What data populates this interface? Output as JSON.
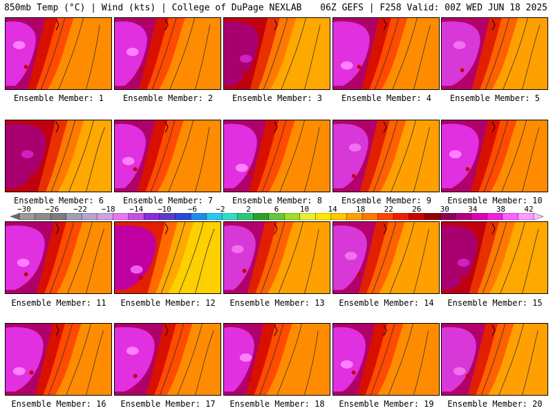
{
  "header": {
    "left": "850mb Temp (°C) | Wind (kts) | College of DuPage NEXLAB",
    "right": "06Z GEFS | F258 Valid: 00Z WED JUN 18 2025"
  },
  "colorbar": {
    "labels": [
      "−30",
      "−26",
      "−22",
      "−18",
      "−14",
      "−10",
      "−6",
      "−2",
      "2",
      "6",
      "10",
      "14",
      "18",
      "22",
      "26",
      "30",
      "34",
      "38",
      "42"
    ],
    "colors": [
      "#9a9a9a",
      "#8c8c8c",
      "#7c7c7c",
      "#a0a0b4",
      "#b4a6d2",
      "#d0a0e6",
      "#e878f0",
      "#c850e0",
      "#8a2be2",
      "#5a3cc8",
      "#2d46dc",
      "#1e8cf0",
      "#28c8f0",
      "#32dcc8",
      "#2cc878",
      "#2aa028",
      "#64c83c",
      "#a0dc28",
      "#e6f032",
      "#ffe600",
      "#ffc800",
      "#ffa000",
      "#ff7800",
      "#ff4600",
      "#f01e00",
      "#c80000",
      "#960000",
      "#8c005a",
      "#b4007a",
      "#dc00b4",
      "#f020e0",
      "#ff60ff",
      "#ff9cff"
    ]
  },
  "panels": [
    {
      "label": "Ensemble Member: 1",
      "scheme": "hot"
    },
    {
      "label": "Ensemble Member: 2",
      "scheme": "hot"
    },
    {
      "label": "Ensemble Member: 3",
      "scheme": "mild"
    },
    {
      "label": "Ensemble Member: 4",
      "scheme": "hot"
    },
    {
      "label": "Ensemble Member: 5",
      "scheme": "mid"
    },
    {
      "label": "Ensemble Member: 6",
      "scheme": "mild"
    },
    {
      "label": "Ensemble Member: 7",
      "scheme": "hot"
    },
    {
      "label": "Ensemble Member: 8",
      "scheme": "hot"
    },
    {
      "label": "Ensemble Member: 9",
      "scheme": "mid"
    },
    {
      "label": "Ensemble Member: 10",
      "scheme": "hot"
    },
    {
      "label": "Ensemble Member: 11",
      "scheme": "hot"
    },
    {
      "label": "Ensemble Member: 12",
      "scheme": "cool"
    },
    {
      "label": "Ensemble Member: 13",
      "scheme": "mid"
    },
    {
      "label": "Ensemble Member: 14",
      "scheme": "mid"
    },
    {
      "label": "Ensemble Member: 15",
      "scheme": "mild"
    },
    {
      "label": "Ensemble Member: 16",
      "scheme": "hot"
    },
    {
      "label": "Ensemble Member: 17",
      "scheme": "hot"
    },
    {
      "label": "Ensemble Member: 18",
      "scheme": "hot"
    },
    {
      "label": "Ensemble Member: 19",
      "scheme": "hot"
    },
    {
      "label": "Ensemble Member: 20",
      "scheme": "mid"
    }
  ]
}
